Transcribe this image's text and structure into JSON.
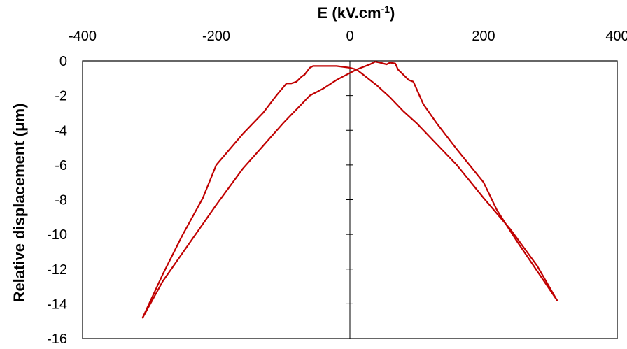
{
  "chart_data": {
    "type": "line",
    "title": "",
    "xlabel": "E (kV.cm",
    "xlabel_sup": "-1",
    "xlabel_close": ")",
    "ylabel": "Relative displacement (μm)",
    "xlim": [
      -400,
      400
    ],
    "ylim": [
      -16,
      0
    ],
    "x_ticks": [
      -400,
      -200,
      0,
      200,
      400
    ],
    "y_ticks": [
      0,
      -2,
      -4,
      -6,
      -8,
      -10,
      -12,
      -14,
      -16
    ],
    "x_axis_position": "top",
    "grid": false,
    "legend": "none",
    "series_color": "#c00000",
    "series": [
      {
        "name": "",
        "x": [
          310,
          280,
          250,
          220,
          200,
          160,
          130,
          110,
          95,
          88,
          80,
          72,
          68,
          60,
          55,
          45,
          38,
          30,
          20,
          10,
          0,
          -10,
          -20,
          -40,
          -50,
          -55,
          -60,
          -70,
          -80,
          -85,
          -100,
          -130,
          -160,
          -200,
          -240,
          -280,
          -310
        ],
        "y": [
          -13.8,
          -12.1,
          -10.4,
          -8.6,
          -7.0,
          -5.1,
          -3.6,
          -2.5,
          -1.2,
          -1.1,
          -0.8,
          -0.5,
          -0.15,
          -0.1,
          -0.2,
          -0.1,
          -0.05,
          -0.2,
          -0.35,
          -0.5,
          -0.7,
          -0.9,
          -1.1,
          -1.6,
          -1.8,
          -1.9,
          -2.0,
          -2.4,
          -2.8,
          -3.0,
          -3.6,
          -4.9,
          -6.2,
          -8.3,
          -10.5,
          -12.7,
          -14.8
        ]
      },
      {
        "name": "",
        "x": [
          -310,
          -280,
          -250,
          -220,
          -200,
          -160,
          -130,
          -110,
          -95,
          -88,
          -80,
          -72,
          -68,
          -60,
          -55,
          -40,
          -20,
          0,
          10,
          20,
          30,
          40,
          60,
          80,
          100,
          130,
          160,
          200,
          240,
          280,
          310
        ],
        "y": [
          -14.8,
          -12.3,
          -10.0,
          -7.9,
          -6.0,
          -4.2,
          -3.0,
          -2.0,
          -1.3,
          -1.3,
          -1.2,
          -0.9,
          -0.8,
          -0.4,
          -0.3,
          -0.3,
          -0.3,
          -0.4,
          -0.5,
          -0.8,
          -1.1,
          -1.4,
          -2.1,
          -2.9,
          -3.6,
          -4.8,
          -6.0,
          -7.9,
          -9.7,
          -11.8,
          -13.8
        ]
      }
    ]
  }
}
